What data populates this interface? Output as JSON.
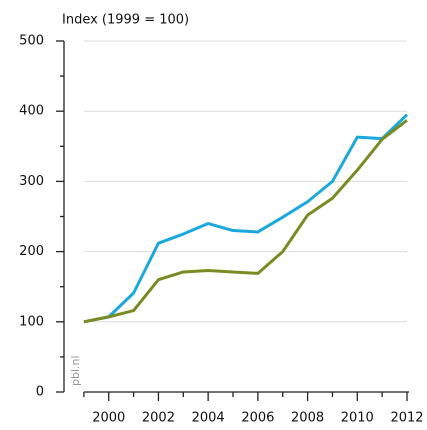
{
  "chart_data": {
    "type": "line",
    "title": "Index (1999 = 100)",
    "watermark": "pbl.nl",
    "x": [
      1999,
      2000,
      2001,
      2002,
      2003,
      2004,
      2005,
      2006,
      2007,
      2008,
      2009,
      2010,
      2011,
      2012
    ],
    "series": [
      {
        "color": "#1ba8df",
        "values": [
          100,
          107,
          141,
          212,
          225,
          240,
          230,
          228,
          249,
          271,
          300,
          363,
          361,
          395
        ]
      },
      {
        "color": "#798b23",
        "values": [
          100,
          107,
          116,
          160,
          171,
          173,
          171,
          169,
          200,
          252,
          276,
          316,
          360,
          387
        ]
      }
    ],
    "xlim": [
      1998.2,
      2012
    ],
    "xticks": [
      2000,
      2002,
      2004,
      2006,
      2008,
      2010,
      2012
    ],
    "xminorticks": [
      1999,
      2001,
      2003,
      2005,
      2007,
      2009,
      2011
    ],
    "ylim": [
      0,
      500
    ],
    "yticks": [
      0,
      100,
      200,
      300,
      400,
      500
    ],
    "yminorticks": [
      50,
      150,
      250,
      350,
      450
    ],
    "grid": true
  }
}
